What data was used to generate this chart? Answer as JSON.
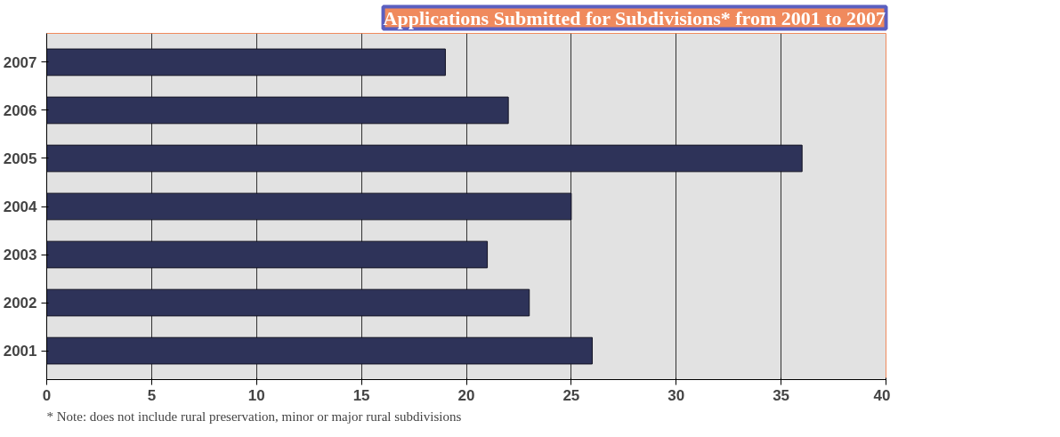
{
  "chart_data": {
    "type": "bar",
    "orientation": "horizontal",
    "title": "Applications Submitted for Subdivisions* from 2001 to 2007",
    "categories": [
      "2007",
      "2006",
      "2005",
      "2004",
      "2003",
      "2002",
      "2001"
    ],
    "values": [
      19,
      22,
      36,
      25,
      21,
      23,
      26
    ],
    "color": "#2e3359",
    "xlim": [
      0,
      40
    ],
    "xticks": [
      0,
      5,
      10,
      15,
      20,
      25,
      30,
      35,
      40
    ],
    "grid": "x",
    "annotations": [
      "* Note: does not include rural preservation, minor or major rural subdivisions"
    ]
  }
}
